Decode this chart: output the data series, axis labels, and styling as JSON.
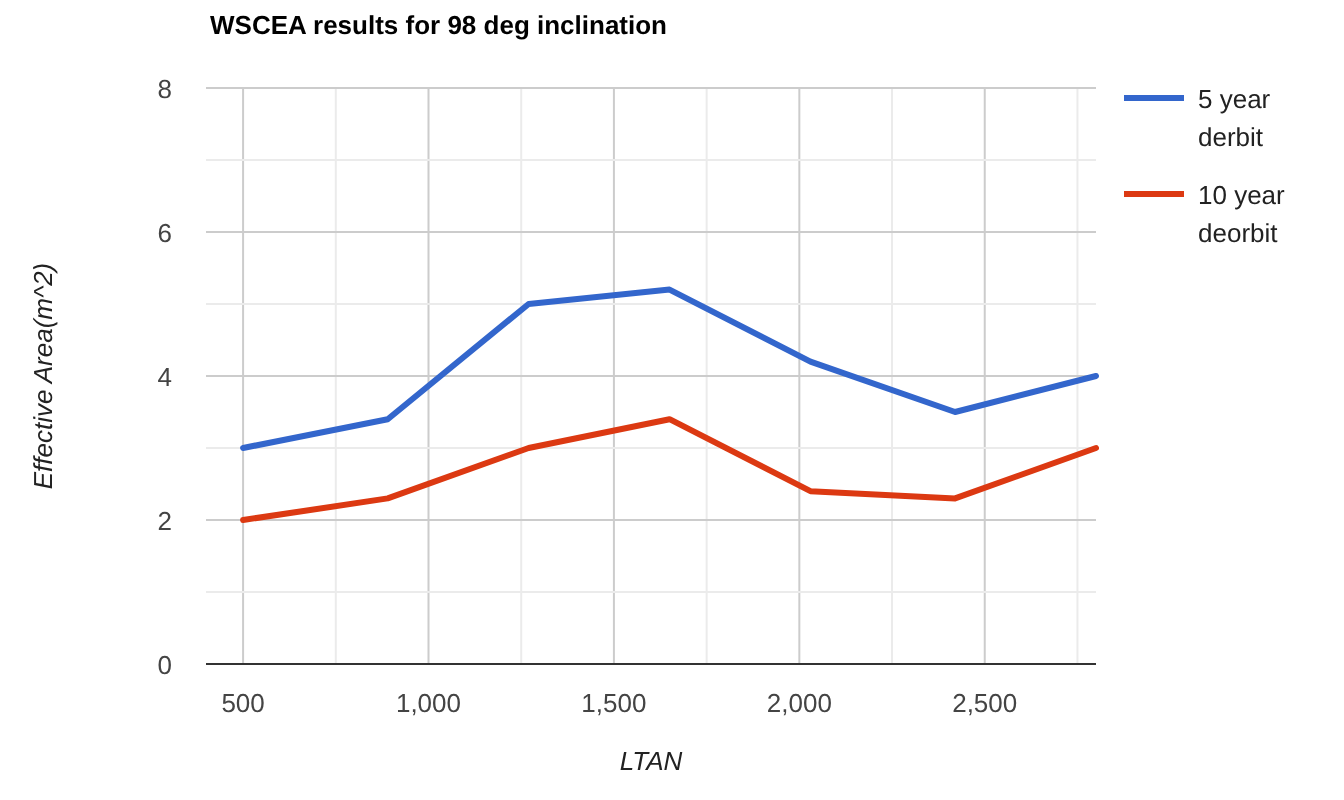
{
  "chart_data": {
    "type": "line",
    "title": "WSCEA results for 98 deg inclination",
    "xlabel": "LTAN",
    "ylabel": "Effective Area(m^2)",
    "x": [
      500,
      890,
      1270,
      1650,
      2030,
      2420,
      2800
    ],
    "series": [
      {
        "name": "5 year derbit",
        "color": "#3366cc",
        "values": [
          3.0,
          3.4,
          5.0,
          5.2,
          4.2,
          3.5,
          4.0
        ]
      },
      {
        "name": "10 year deorbit",
        "color": "#dc3912",
        "values": [
          2.0,
          2.3,
          3.0,
          3.4,
          2.4,
          2.3,
          3.0
        ]
      }
    ],
    "xlim": [
      400,
      2800
    ],
    "xticks": [
      500,
      {
        "value": 750,
        "label": null
      },
      {
        "value": 1000,
        "label": "1,000"
      },
      {
        "value": 1250,
        "label": null
      },
      {
        "value": 1500,
        "label": "1,500"
      },
      {
        "value": 1750,
        "label": null
      },
      {
        "value": 2000,
        "label": "2,000"
      },
      {
        "value": 2250,
        "label": null
      },
      {
        "value": 2500,
        "label": "2,500"
      },
      {
        "value": 2750,
        "label": null
      }
    ],
    "ylim": [
      0,
      8
    ],
    "yticks": [
      0,
      {
        "value": 1,
        "label": null
      },
      2,
      {
        "value": 3,
        "label": null
      },
      4,
      {
        "value": 5,
        "label": null
      },
      6,
      {
        "value": 7,
        "label": null
      },
      8
    ],
    "grid": true,
    "legend": "right",
    "marker": "none",
    "line_style": "solid"
  }
}
